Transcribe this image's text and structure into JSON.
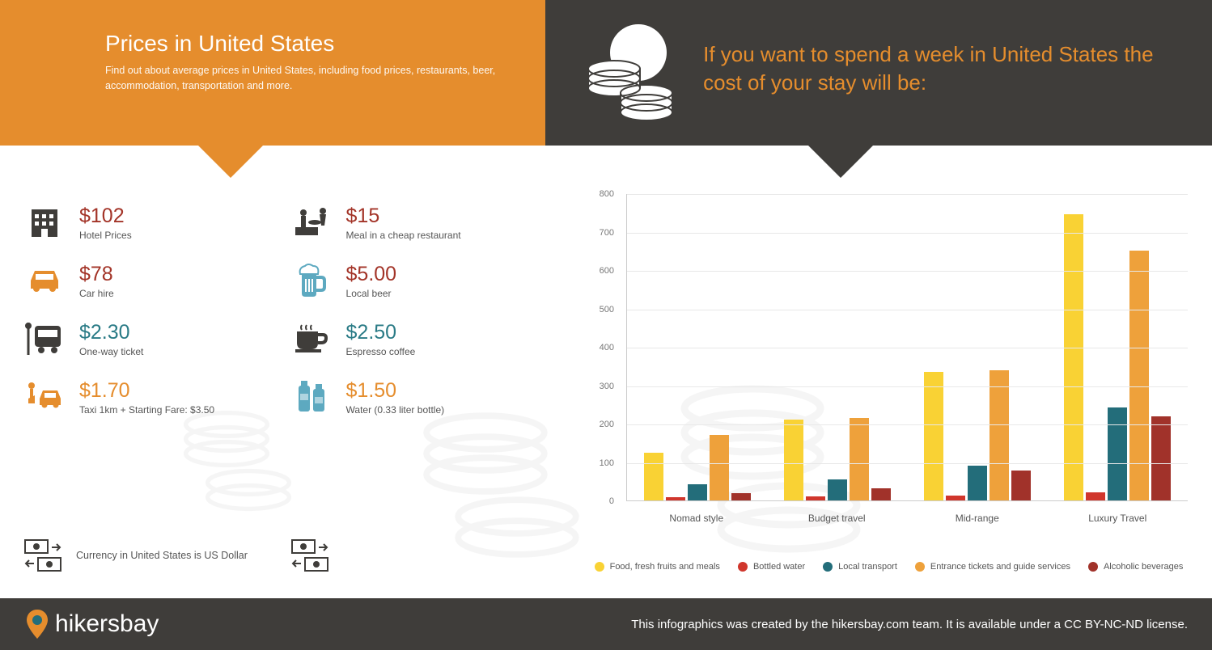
{
  "header": {
    "title": "Prices in United States",
    "subtitle": "Find out about average prices in United States, including food prices, restaurants, beer, accommodation, transportation and more.",
    "right_title": "If you want to spend a week in United States the cost of your stay will be:"
  },
  "colors": {
    "orange": "#e58d2d",
    "dark": "#3f3d3a",
    "red_price": "#a33428",
    "teal": "#2a7b86",
    "blue": "#4a9bb5",
    "icon_dark": "#3f3d3a",
    "icon_orange": "#e58d2d",
    "icon_blue": "#5da9c0",
    "series_food": "#f9d234",
    "series_water": "#d0362c",
    "series_transport": "#236d7a",
    "series_tickets": "#eea13b",
    "series_alcohol": "#a1322a"
  },
  "prices": {
    "left": [
      {
        "icon": "hotel",
        "amount": "$102",
        "label": "Hotel Prices",
        "color": "c-red",
        "icon_color": "#3f3d3a"
      },
      {
        "icon": "car",
        "amount": "$78",
        "label": "Car hire",
        "color": "c-red",
        "icon_color": "#e58d2d"
      },
      {
        "icon": "bus",
        "amount": "$2.30",
        "label": "One-way ticket",
        "color": "c-teal",
        "icon_color": "#3f3d3a"
      },
      {
        "icon": "taxi",
        "amount": "$1.70",
        "label": "Taxi 1km + Starting Fare: $3.50",
        "color": "c-orange",
        "icon_color": "#e58d2d"
      }
    ],
    "right": [
      {
        "icon": "meal",
        "amount": "$15",
        "label": "Meal in a cheap restaurant",
        "color": "c-red",
        "icon_color": "#3f3d3a"
      },
      {
        "icon": "beer",
        "amount": "$5.00",
        "label": "Local beer",
        "color": "c-red",
        "icon_color": "#5da9c0"
      },
      {
        "icon": "coffee",
        "amount": "$2.50",
        "label": "Espresso coffee",
        "color": "c-teal",
        "icon_color": "#3f3d3a"
      },
      {
        "icon": "water",
        "amount": "$1.50",
        "label": "Water (0.33 liter bottle)",
        "color": "c-orange",
        "icon_color": "#5da9c0"
      }
    ]
  },
  "currency_note": "Currency in United States is US Dollar",
  "chart": {
    "type": "bar",
    "ylim": [
      0,
      800
    ],
    "ytick_step": 100,
    "categories": [
      "Nomad style",
      "Budget travel",
      "Mid-range",
      "Luxury Travel"
    ],
    "series": [
      {
        "name": "Food, fresh fruits and meals",
        "color": "#f9d234",
        "values": [
          125,
          210,
          335,
          745
        ]
      },
      {
        "name": "Bottled water",
        "color": "#d0362c",
        "values": [
          8,
          10,
          12,
          22
        ]
      },
      {
        "name": "Local transport",
        "color": "#236d7a",
        "values": [
          42,
          55,
          90,
          242
        ]
      },
      {
        "name": "Entrance tickets and guide services",
        "color": "#eea13b",
        "values": [
          170,
          215,
          340,
          650
        ]
      },
      {
        "name": "Alcoholic beverages",
        "color": "#a1322a",
        "values": [
          20,
          32,
          78,
          220
        ]
      }
    ]
  },
  "footer": {
    "brand": "hikersbay",
    "credit": "This infographics was created by the hikersbay.com team. It is available under a CC BY-NC-ND license."
  }
}
